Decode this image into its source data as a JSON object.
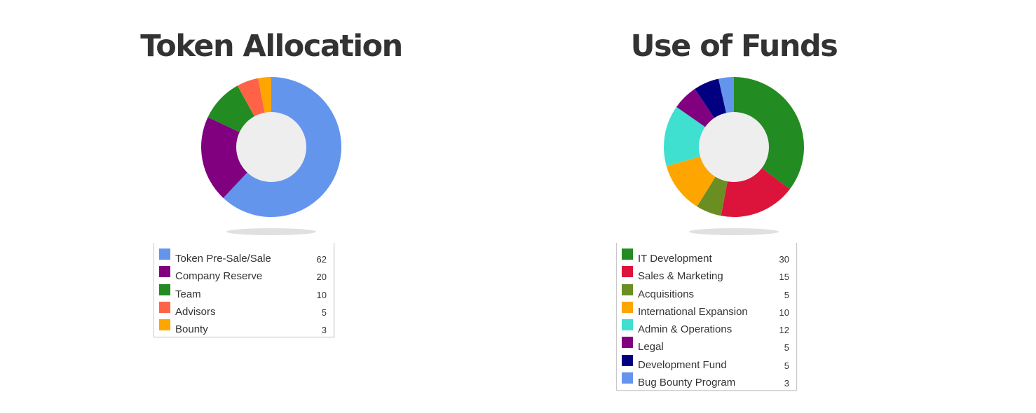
{
  "chart_data": [
    {
      "type": "pie",
      "title": "Token Allocation",
      "categories": [
        "Token Pre-Sale/Sale",
        "Company Reserve",
        "Team",
        "Advisors",
        "Bounty"
      ],
      "values": [
        62,
        20,
        10,
        5,
        3
      ],
      "colors": [
        "#6495ED",
        "#800080",
        "#228B22",
        "#FF6347",
        "#FFA500"
      ],
      "center_color": "#EEEEEE",
      "legend_placement": "bottom"
    },
    {
      "type": "pie",
      "title": "Use of Funds",
      "categories": [
        "IT Development",
        "Sales & Marketing",
        "Acquisitions",
        "International Expansion",
        "Admin & Operations",
        "Legal",
        "Development Fund",
        "Bug Bounty Program"
      ],
      "values": [
        30,
        15,
        5,
        10,
        12,
        5,
        5,
        3
      ],
      "colors": [
        "#228B22",
        "#DC143C",
        "#6B8E23",
        "#FFA500",
        "#40E0D0",
        "#800080",
        "#000080",
        "#6495ED"
      ],
      "center_color": "#EEEEEE",
      "legend_placement": "bottom"
    }
  ]
}
